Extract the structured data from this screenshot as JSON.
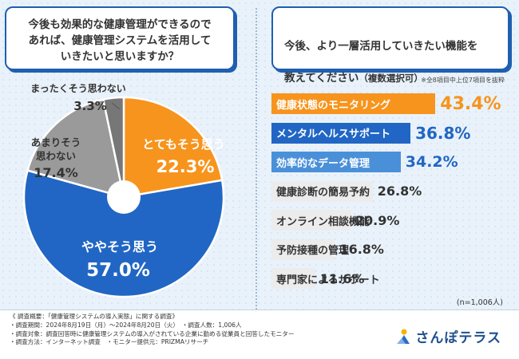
{
  "left_question": "今後も効果的な健康管理ができるので\nあれば、健康管理システムを活用して\nいきたいと思いますか？",
  "right_question": {
    "line1": "今後、より一層活用していきたい機能を",
    "line2_main": "教えてください",
    "line2_sub": "（複数選択可）"
  },
  "top_note": "※全8項目中上位7項目を抜粋",
  "n_label": "(n=1,006人)",
  "colors": {
    "orange": "#f7941d",
    "blue": "#2166c4",
    "gray": "#9a9a9a",
    "darkgray": "#777777",
    "light_blue": "#4a90d9",
    "light_gray": "#ececec"
  },
  "chart_data": [
    {
      "type": "pie",
      "title": "今後も効果的な健康管理ができるのであれば、健康管理システムを活用していきたいと思いますか？",
      "slices": [
        {
          "label": "とてもそう思う",
          "value": 22.3
        },
        {
          "label": "ややそう思う",
          "value": 57.0
        },
        {
          "label": "あまりそう思わない",
          "value": 17.4
        },
        {
          "label": "まったくそう思わない",
          "value": 3.3
        }
      ],
      "display_labels": {
        "s0": "とてもそう思う",
        "v0": "22.3%",
        "s1": "ややそう思う",
        "v1": "57.0%",
        "s2a": "あまりそう",
        "s2b": "思わない",
        "v2": "17.4%",
        "s3": "まったくそう思わない",
        "v3": "3.3%"
      }
    },
    {
      "type": "bar",
      "title": "今後、より一層活用していきたい機能を教えてください（複数選択可）",
      "unit": "%",
      "categories": [
        "健康状態のモニタリング",
        "メンタルヘルスサポート",
        "効率的なデータ管理",
        "健康診断の簡易予約",
        "オンライン相談機能",
        "予防接種の管理",
        "専門家によるサポート"
      ],
      "values": [
        43.4,
        36.8,
        34.2,
        26.8,
        20.9,
        16.8,
        11.6
      ],
      "value_labels": [
        "43.4%",
        "36.8%",
        "34.2%",
        "26.8%",
        "20.9%",
        "16.8%",
        "11.6%"
      ]
    }
  ],
  "footer": {
    "lines": [
      "《 調査概要：「健康管理システムの導入実態」に関する調査》",
      "・調査期間：2024年8月19日（月）～2024年8月20日（火）　・調査人数：1,006人",
      "・調査対象：調査回答時に健康管理システムの導入がされている企業に勤める従業員と回答したモニター",
      "・調査方法：インターネット調査　・モニター提供元：PRIZMAリサーチ"
    ],
    "logo_text": "さんぽテラス"
  }
}
